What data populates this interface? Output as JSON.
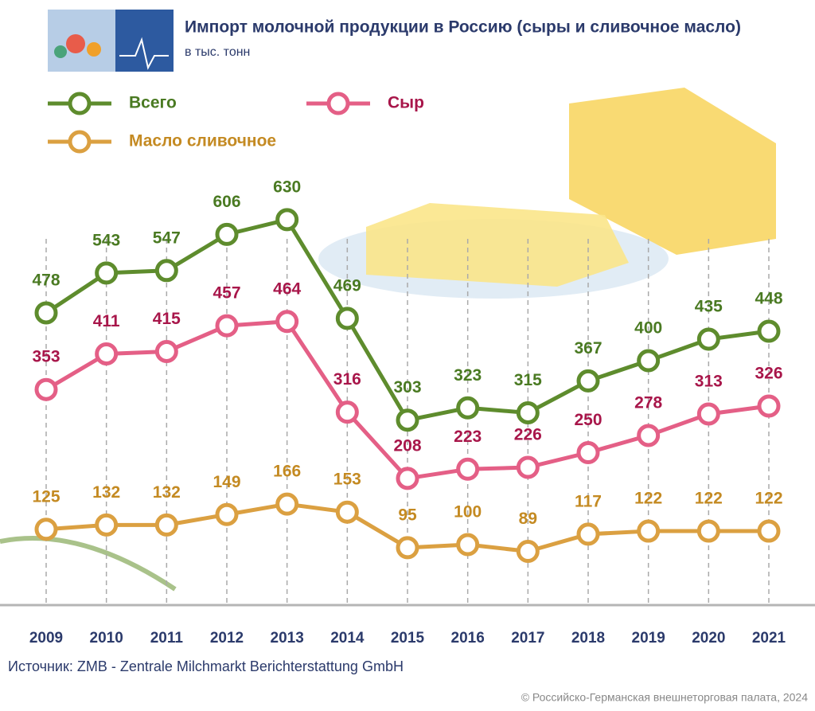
{
  "chart_data": {
    "type": "line",
    "title": "Импорт молочной продукции в Россию (сыры и сливочное масло)",
    "subtitle": "в тыс. тонн",
    "categories": [
      "2009",
      "2010",
      "2011",
      "2012",
      "2013",
      "2014",
      "2015",
      "2016",
      "2017",
      "2018",
      "2019",
      "2020",
      "2021"
    ],
    "series": [
      {
        "name": "Всего",
        "color": "#5e8c2d",
        "label_color": "#4a7a22",
        "values": [
          478,
          543,
          547,
          606,
          630,
          469,
          303,
          323,
          315,
          367,
          400,
          435,
          448
        ]
      },
      {
        "name": "Сыр",
        "color": "#e45f86",
        "label_color": "#a8164a",
        "values": [
          353,
          411,
          415,
          457,
          464,
          316,
          208,
          223,
          226,
          250,
          278,
          313,
          326
        ]
      },
      {
        "name": "Масло сливочное",
        "color": "#dba041",
        "label_color": "#c48a22",
        "values": [
          125,
          132,
          132,
          149,
          166,
          153,
          95,
          100,
          89,
          117,
          122,
          122,
          122
        ]
      }
    ],
    "ylim": [
      0,
      700
    ]
  },
  "footer": {
    "source": "Источник: ZMB - Zentrale Milchmarkt Berichterstattung GmbH",
    "copyright": "© Российско-Германская внешнеторговая палата, 2024"
  }
}
